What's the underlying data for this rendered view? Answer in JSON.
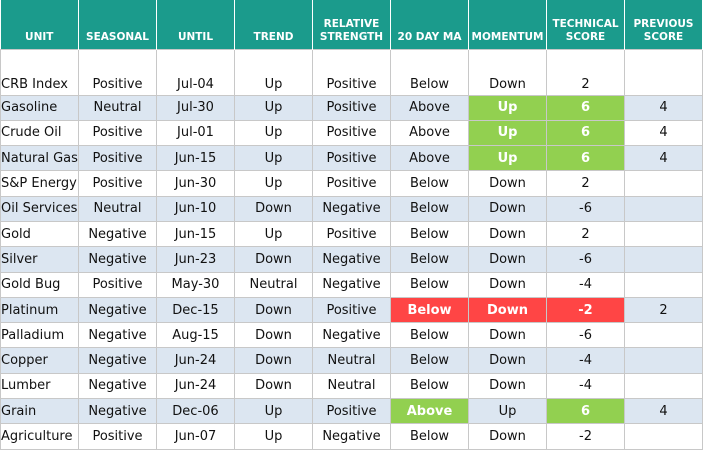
{
  "table": {
    "columns": [
      "UNIT",
      "SEASONAL",
      "UNTIL",
      "TREND",
      "RELATIVE STRENGTH",
      "20 DAY MA",
      "MOMENTUM",
      "TECHNICAL SCORE",
      "PREVIOUS SCORE"
    ],
    "header_color": "#1b9b8c",
    "stripe_color": "#dce6f1",
    "rows": [
      {
        "cells": [
          "CRB Index",
          "Positive",
          "Jul-04",
          "Up",
          "Positive",
          "Below",
          "Down",
          "2"
        ]
      },
      {
        "cells": [
          "Gasoline",
          "Neutral",
          "Jul-30",
          "Up",
          "Positive",
          "Above",
          "Up",
          "6",
          "4"
        ],
        "highlight": {
          "6": "#92d050",
          "7": "#92d050"
        }
      },
      {
        "cells": [
          "Crude Oil",
          "Positive",
          "Jul-01",
          "Up",
          "Positive",
          "Above",
          "Up",
          "6",
          "4"
        ],
        "highlight": {
          "6": "#92d050",
          "7": "#92d050"
        }
      },
      {
        "cells": [
          "Natural Gas",
          "Positive",
          "Jun-15",
          "Up",
          "Positive",
          "Above",
          "Up",
          "6",
          "4"
        ],
        "highlight": {
          "6": "#92d050",
          "7": "#92d050"
        }
      },
      {
        "cells": [
          "S&P Energy",
          "Positive",
          "Jun-30",
          "Up",
          "Positive",
          "Below",
          "Down",
          "2"
        ]
      },
      {
        "cells": [
          "Oil Services",
          "Neutral",
          "Jun-10",
          "Down",
          "Negative",
          "Below",
          "Down",
          "-6"
        ]
      },
      {
        "cells": [
          "Gold",
          "Negative",
          "Jun-15",
          "Up",
          "Positive",
          "Below",
          "Down",
          "2"
        ]
      },
      {
        "cells": [
          "Silver",
          "Negative",
          "Jun-23",
          "Down",
          "Negative",
          "Below",
          "Down",
          "-6"
        ]
      },
      {
        "cells": [
          "Gold Bug",
          "Positive",
          "May-30",
          "Neutral",
          "Negative",
          "Below",
          "Down",
          "-4"
        ]
      },
      {
        "cells": [
          "Platinum",
          "Negative",
          "Dec-15",
          "Down",
          "Positive",
          "Below",
          "Down",
          "-2",
          "2"
        ],
        "highlight": {
          "5": "#ff4545",
          "6": "#ff4545",
          "7": "#ff4545"
        }
      },
      {
        "cells": [
          "Palladium",
          "Negative",
          "Aug-15",
          "Down",
          "Negative",
          "Below",
          "Down",
          "-6"
        ]
      },
      {
        "cells": [
          "Copper",
          "Negative",
          "Jun-24",
          "Down",
          "Neutral",
          "Below",
          "Down",
          "-4"
        ]
      },
      {
        "cells": [
          "Lumber",
          "Negative",
          "Jun-24",
          "Down",
          "Neutral",
          "Below",
          "Down",
          "-4"
        ]
      },
      {
        "cells": [
          "Grain",
          "Negative",
          "Dec-06",
          "Up",
          "Positive",
          "Above",
          "Up",
          "6",
          "4"
        ],
        "highlight": {
          "5": "#92d050",
          "7": "#92d050"
        }
      },
      {
        "cells": [
          "Agriculture",
          "Positive",
          "Jun-07",
          "Up",
          "Negative",
          "Below",
          "Down",
          "-2"
        ]
      }
    ]
  }
}
